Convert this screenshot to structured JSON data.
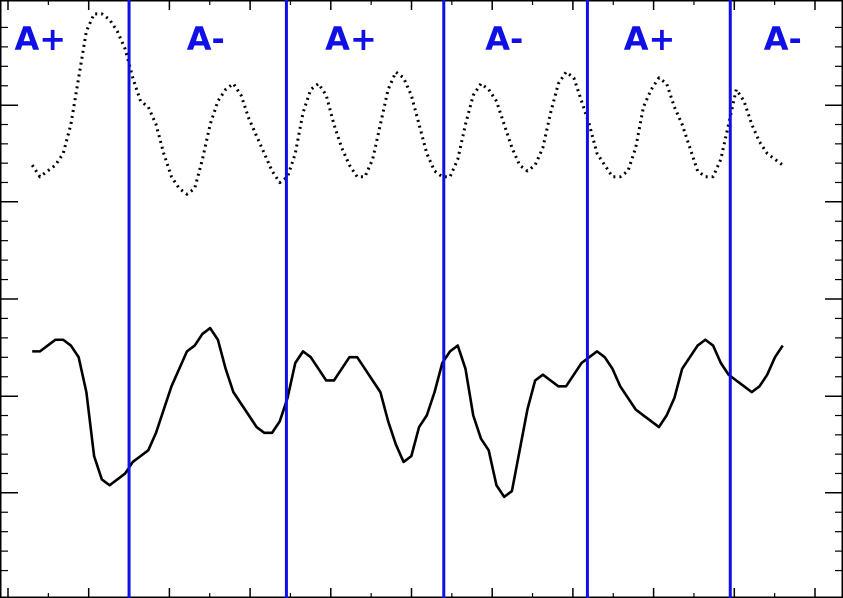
{
  "chart_data": {
    "type": "line",
    "frame_color": "#000000",
    "boundary_color": "#1010e6",
    "xlim": [
      0,
      100
    ],
    "ylim": [
      0,
      100
    ],
    "boundaries": [
      15.0,
      34.5,
      54.0,
      71.8,
      89.5
    ],
    "polarity_labels": [
      {
        "text": "A+",
        "x": 4.0
      },
      {
        "text": "A-",
        "x": 24.5
      },
      {
        "text": "A+",
        "x": 42.5
      },
      {
        "text": "A-",
        "x": 61.5
      },
      {
        "text": "A+",
        "x": 79.5
      },
      {
        "text": "A-",
        "x": 96.0
      }
    ],
    "polarity_color": "#1010e6",
    "series": [
      {
        "style": "dotted",
        "x": [
          0,
          1,
          2,
          3,
          4,
          5,
          6,
          7,
          8,
          9,
          10,
          11,
          12,
          13,
          14,
          15,
          16,
          17,
          18,
          19,
          20,
          21,
          22,
          23,
          24,
          25,
          26,
          27,
          28,
          29,
          30,
          31,
          32,
          33,
          34,
          35,
          36,
          37,
          38,
          39,
          40,
          41,
          42,
          43,
          44,
          45,
          46,
          47,
          48,
          49,
          50,
          51,
          52,
          53,
          54,
          55,
          56,
          57,
          58,
          59,
          60,
          61,
          62,
          63,
          64,
          65,
          66,
          67,
          68,
          69,
          70,
          71,
          72,
          73,
          74,
          75,
          76,
          77,
          78,
          79,
          80,
          81,
          82,
          83,
          84,
          85,
          86,
          87,
          88,
          89,
          90,
          91,
          92,
          93,
          94,
          95,
          96,
          97
        ],
        "y": [
          73,
          71,
          72,
          73,
          75,
          80,
          88,
          96,
          99,
          99,
          98,
          96,
          93,
          88,
          84,
          83,
          80,
          75,
          71,
          69,
          68,
          69,
          74,
          80,
          84,
          86,
          87,
          85,
          81,
          78,
          75,
          72,
          70,
          71,
          75,
          82,
          86,
          87,
          85,
          80,
          76,
          73,
          71,
          71,
          74,
          80,
          86,
          89,
          88,
          85,
          80,
          75,
          72,
          71,
          71,
          74,
          80,
          85,
          87,
          86,
          84,
          80,
          76,
          73,
          72,
          73,
          76,
          82,
          87,
          89,
          88,
          84,
          80,
          75,
          73,
          71,
          71,
          72,
          76,
          83,
          86,
          88,
          87,
          83,
          80,
          76,
          72,
          71,
          71,
          74,
          80,
          86,
          84,
          80,
          77,
          75,
          74,
          73
        ],
        "color": "#000000"
      },
      {
        "style": "solid",
        "x": [
          0,
          1,
          2,
          3,
          4,
          5,
          6,
          7,
          8,
          9,
          10,
          11,
          12,
          13,
          14,
          15,
          16,
          17,
          18,
          19,
          20,
          21,
          22,
          23,
          24,
          25,
          26,
          27,
          28,
          29,
          30,
          31,
          32,
          33,
          34,
          35,
          36,
          37,
          38,
          39,
          40,
          41,
          42,
          43,
          44,
          45,
          46,
          47,
          48,
          49,
          50,
          51,
          52,
          53,
          54,
          55,
          56,
          57,
          58,
          59,
          60,
          61,
          62,
          63,
          64,
          65,
          66,
          67,
          68,
          69,
          70,
          71,
          72,
          73,
          74,
          75,
          76,
          77,
          78,
          79,
          80,
          81,
          82,
          83,
          84,
          85,
          86,
          87,
          88,
          89,
          90,
          91,
          92,
          93,
          94,
          95,
          96,
          97
        ],
        "y": [
          41,
          41,
          42,
          43,
          43,
          42,
          40,
          34,
          23,
          19,
          18,
          19,
          20,
          22,
          23,
          24,
          27,
          31,
          35,
          38,
          41,
          42,
          44,
          45,
          43,
          38,
          34,
          32,
          30,
          28,
          27,
          27,
          29,
          33,
          39,
          41,
          40,
          38,
          36,
          36,
          38,
          40,
          40,
          38,
          36,
          34,
          29,
          25,
          22,
          23,
          28,
          30,
          34,
          39,
          41,
          42,
          38,
          30,
          26,
          24,
          18,
          16,
          17,
          24,
          31,
          36,
          37,
          36,
          35,
          35,
          37,
          39,
          40,
          41,
          40,
          38,
          35,
          33,
          31,
          30,
          29,
          28,
          30,
          33,
          38,
          40,
          42,
          43,
          42,
          39,
          37,
          36,
          35,
          34,
          35,
          37,
          40,
          42
        ],
        "color": "#000000"
      }
    ],
    "xticks_major": [
      0,
      10,
      20,
      30,
      40,
      50,
      60,
      70,
      80,
      90,
      100
    ],
    "yticks_major": [
      16.7,
      33.3,
      50,
      66.7,
      83.3
    ],
    "grid": false
  }
}
